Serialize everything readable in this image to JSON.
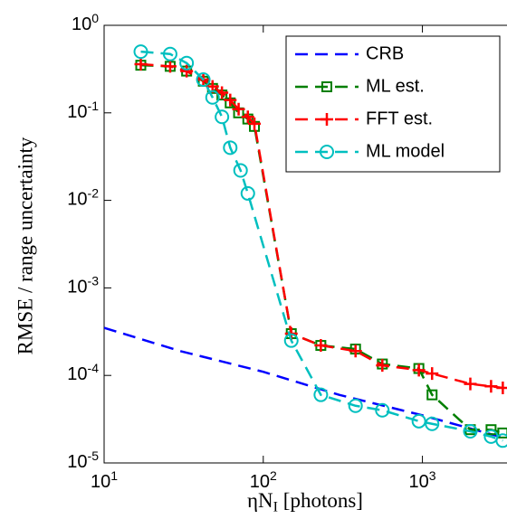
{
  "chart_data": {
    "type": "line",
    "xlabel": "ηN_I [photons]",
    "ylabel": "RMSE / range uncertainty",
    "xscale": "log",
    "yscale": "log",
    "xlim": [
      10,
      3400
    ],
    "ylim": [
      1e-05,
      1
    ],
    "xticks": [
      {
        "value": 10,
        "label": "10^1"
      },
      {
        "value": 100,
        "label": "10^2"
      },
      {
        "value": 1000,
        "label": "10^3"
      }
    ],
    "yticks": [
      {
        "value": 1e-05,
        "label": "10^-5"
      },
      {
        "value": 0.0001,
        "label": "10^-4"
      },
      {
        "value": 0.001,
        "label": "10^-3"
      },
      {
        "value": 0.01,
        "label": "10^-2"
      },
      {
        "value": 0.1,
        "label": "10^-1"
      },
      {
        "value": 1,
        "label": "10^0"
      }
    ],
    "legend": "upper right",
    "series": [
      {
        "name": "CRB",
        "color": "#0000ff",
        "marker": "none",
        "x": [
          10,
          30,
          100,
          300,
          1000,
          3400
        ],
        "values": [
          0.00035,
          0.00019,
          0.00011,
          6e-05,
          3.5e-05,
          1.9e-05
        ]
      },
      {
        "name": "ML est.",
        "color": "#007f00",
        "marker": "square",
        "x": [
          17,
          26,
          33,
          42,
          48,
          55,
          62,
          70,
          80,
          88,
          150,
          230,
          380,
          560,
          950,
          1150,
          2000,
          2700,
          3200
        ],
        "values": [
          0.35,
          0.34,
          0.3,
          0.23,
          0.19,
          0.16,
          0.13,
          0.1,
          0.085,
          0.07,
          0.0003,
          0.00022,
          0.0002,
          0.000135,
          0.00012,
          6e-05,
          2.4e-05,
          2.4e-05,
          2.2e-05
        ]
      },
      {
        "name": "FFT est.",
        "color": "#ff0000",
        "marker": "plus",
        "x": [
          17,
          26,
          33,
          42,
          48,
          55,
          62,
          70,
          80,
          88,
          150,
          230,
          380,
          560,
          950,
          1150,
          2000,
          2700,
          3200
        ],
        "values": [
          0.36,
          0.34,
          0.3,
          0.24,
          0.2,
          0.17,
          0.14,
          0.11,
          0.09,
          0.075,
          0.0003,
          0.00022,
          0.00019,
          0.00013,
          0.000115,
          0.000105,
          8e-05,
          7.5e-05,
          7.2e-05
        ]
      },
      {
        "name": "ML model",
        "color": "#00bfbf",
        "marker": "circle",
        "x": [
          17,
          26,
          33,
          42,
          48,
          55,
          62,
          72,
          80,
          150,
          230,
          380,
          560,
          950,
          1150,
          2000,
          2700,
          3200
        ],
        "values": [
          0.5,
          0.47,
          0.37,
          0.24,
          0.15,
          0.09,
          0.04,
          0.022,
          0.012,
          0.00025,
          6e-05,
          4.5e-05,
          4e-05,
          3e-05,
          2.8e-05,
          2.3e-05,
          2e-05,
          1.8e-05
        ]
      }
    ]
  }
}
